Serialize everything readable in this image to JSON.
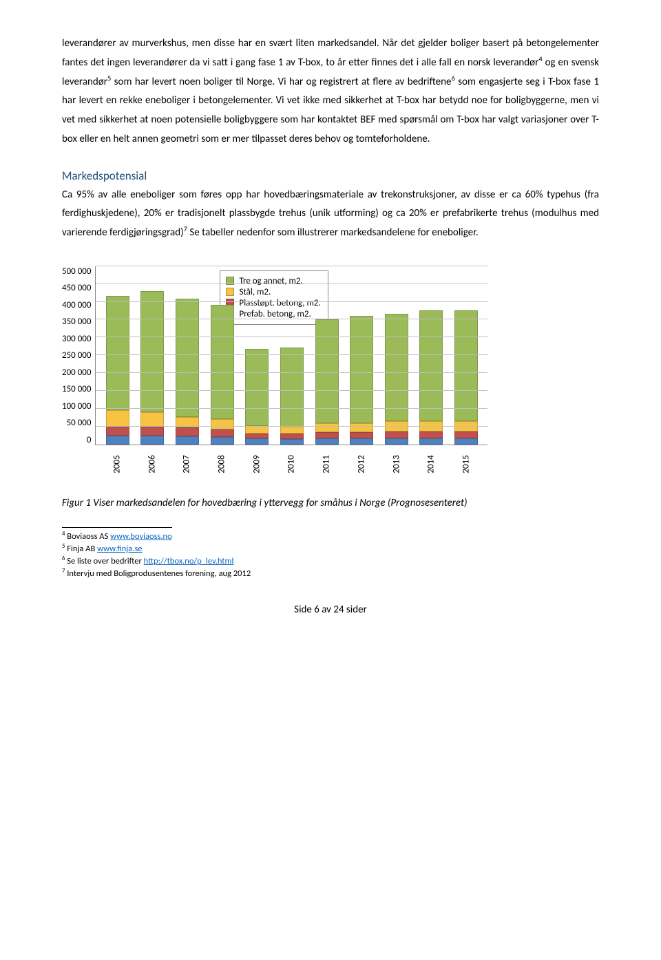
{
  "para1": "leverandører av murverkshus, men disse har en svært liten markedsandel. Når det gjelder boliger basert på betongelementer fantes det ingen leverandører da vi satt i gang fase 1 av T-box, to år etter finnes det i alle fall en norsk leverandør",
  "para1_sup1": "4",
  "para1_mid": " og en svensk leverandør",
  "para1_sup2": "5",
  "para1_tail": " som har levert noen boliger til Norge. Vi har og registrert at flere av bedriftene",
  "para1_sup3": "6",
  "para1_end": " som engasjerte seg i T-box fase 1 har levert en rekke eneboliger i betongelementer. Vi vet ikke med sikkerhet at T-box har betydd noe for boligbyggerne, men vi vet med sikkerhet at noen potensielle boligbyggere som har kontaktet BEF med spørsmål om T-box har valgt variasjoner over T-box eller en helt annen geometri som er mer tilpasset deres behov og tomteforholdene.",
  "heading": "Markedspotensial",
  "para2_a": "Ca 95% av alle eneboliger som føres opp har hovedbæringsmateriale av trekonstruksjoner, av disse er ca 60% typehus (fra ferdighuskjedene), 20% er tradisjonelt plassbygde trehus (unik utforming) og ca 20% er prefabrikerte trehus (modulhus med varierende ferdigjøringsgrad)",
  "para2_sup": "7",
  "para2_b": " Se tabeller nedenfor som illustrerer markedsandelene for eneboliger.",
  "chart": {
    "type": "stacked-bar",
    "ylim": [
      0,
      500000
    ],
    "ytick_step": 50000,
    "yticks": [
      "500 000",
      "450 000",
      "400 000",
      "350 000",
      "300 000",
      "250 000",
      "200 000",
      "150 000",
      "100 000",
      "50 000",
      "0"
    ],
    "categories": [
      "2005",
      "2006",
      "2007",
      "2008",
      "2009",
      "2010",
      "2011",
      "2012",
      "2013",
      "2014",
      "2015"
    ],
    "series": [
      {
        "name": "Tre og annet, m2.",
        "color": "#9bbb59"
      },
      {
        "name": "Stål, m2.",
        "color": "#f6c342"
      },
      {
        "name": "Plasstøpt. betong, m2.",
        "color": "#c0504d"
      },
      {
        "name": "Prefab. betong, m2.",
        "color": "#4f81bd"
      }
    ],
    "data": {
      "prefab": [
        25000,
        24000,
        22000,
        20000,
        16000,
        15000,
        16000,
        16000,
        17000,
        17000,
        17000
      ],
      "plass": [
        25000,
        25000,
        25000,
        22000,
        15000,
        15000,
        18000,
        18000,
        20000,
        20000,
        20000
      ],
      "stal": [
        45000,
        40000,
        30000,
        28000,
        20000,
        20000,
        25000,
        25000,
        28000,
        28000,
        28000
      ],
      "tre": [
        320000,
        340000,
        330000,
        320000,
        215000,
        220000,
        290000,
        300000,
        300000,
        310000,
        310000
      ]
    },
    "grid_color": "#bfbfbf",
    "axis_color": "#888888",
    "label_fontsize": 13
  },
  "figure_caption": "Figur 1 Viser markedsandelen for hovedbæring i yttervegg for småhus i Norge (Prognosesenteret)",
  "footnotes": [
    {
      "num": "4",
      "text": "Boviaoss AS ",
      "link": "www.boviaoss.no"
    },
    {
      "num": "5",
      "text": "Finja AB ",
      "link": "www.finja.se"
    },
    {
      "num": "6",
      "text": "Se liste over bedrifter ",
      "link": "http://tbox.no/p_lev.html"
    },
    {
      "num": "7",
      "text": "Intervju med Boligprodusentenes forening, aug 2012",
      "link": ""
    }
  ],
  "page_footer": "Side 6 av 24 sider"
}
